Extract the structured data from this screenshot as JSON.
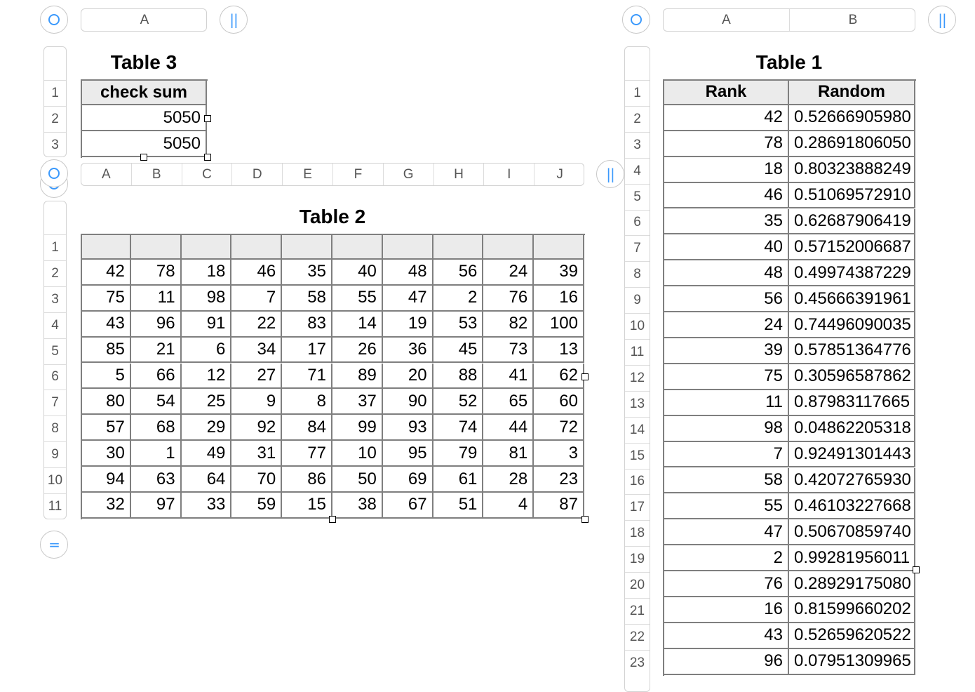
{
  "accent_color": "#3b99fc",
  "table3": {
    "title": "Table 3",
    "columns": [
      "A"
    ],
    "row_numbers": [
      "1",
      "2",
      "3"
    ],
    "header": [
      "check sum"
    ],
    "rows": [
      [
        "5050"
      ],
      [
        "5050"
      ]
    ]
  },
  "table2": {
    "title": "Table 2",
    "columns": [
      "A",
      "B",
      "C",
      "D",
      "E",
      "F",
      "G",
      "H",
      "I",
      "J"
    ],
    "row_numbers": [
      "1",
      "2",
      "3",
      "4",
      "5",
      "6",
      "7",
      "8",
      "9",
      "10",
      "11"
    ],
    "header": [
      "",
      "",
      "",
      "",
      "",
      "",
      "",
      "",
      "",
      ""
    ],
    "rows": [
      [
        "42",
        "78",
        "18",
        "46",
        "35",
        "40",
        "48",
        "56",
        "24",
        "39"
      ],
      [
        "75",
        "11",
        "98",
        "7",
        "58",
        "55",
        "47",
        "2",
        "76",
        "16"
      ],
      [
        "43",
        "96",
        "91",
        "22",
        "83",
        "14",
        "19",
        "53",
        "82",
        "100"
      ],
      [
        "85",
        "21",
        "6",
        "34",
        "17",
        "26",
        "36",
        "45",
        "73",
        "13"
      ],
      [
        "5",
        "66",
        "12",
        "27",
        "71",
        "89",
        "20",
        "88",
        "41",
        "62"
      ],
      [
        "80",
        "54",
        "25",
        "9",
        "8",
        "37",
        "90",
        "52",
        "65",
        "60"
      ],
      [
        "57",
        "68",
        "29",
        "92",
        "84",
        "99",
        "93",
        "74",
        "44",
        "72"
      ],
      [
        "30",
        "1",
        "49",
        "31",
        "77",
        "10",
        "95",
        "79",
        "81",
        "3"
      ],
      [
        "94",
        "63",
        "64",
        "70",
        "86",
        "50",
        "69",
        "61",
        "28",
        "23"
      ],
      [
        "32",
        "97",
        "33",
        "59",
        "15",
        "38",
        "67",
        "51",
        "4",
        "87"
      ]
    ]
  },
  "table1": {
    "title": "Table 1",
    "columns": [
      "A",
      "B"
    ],
    "row_numbers": [
      "1",
      "2",
      "3",
      "4",
      "5",
      "6",
      "7",
      "8",
      "9",
      "10",
      "11",
      "12",
      "13",
      "14",
      "15",
      "16",
      "17",
      "18",
      "19",
      "20",
      "21",
      "22",
      "23"
    ],
    "header": [
      "Rank",
      "Random"
    ],
    "rows": [
      [
        "42",
        "0.52666905980"
      ],
      [
        "78",
        "0.28691806050"
      ],
      [
        "18",
        "0.80323888249"
      ],
      [
        "46",
        "0.51069572910"
      ],
      [
        "35",
        "0.62687906419"
      ],
      [
        "40",
        "0.57152006687"
      ],
      [
        "48",
        "0.49974387229"
      ],
      [
        "56",
        "0.45666391961"
      ],
      [
        "24",
        "0.74496090035"
      ],
      [
        "39",
        "0.57851364776"
      ],
      [
        "75",
        "0.30596587862"
      ],
      [
        "11",
        "0.87983117665"
      ],
      [
        "98",
        "0.04862205318"
      ],
      [
        "7",
        "0.92491301443"
      ],
      [
        "58",
        "0.42072765930"
      ],
      [
        "55",
        "0.46103227668"
      ],
      [
        "47",
        "0.50670859740"
      ],
      [
        "2",
        "0.99281956011"
      ],
      [
        "76",
        "0.28929175080"
      ],
      [
        "16",
        "0.81599660202"
      ],
      [
        "43",
        "0.52659620522"
      ],
      [
        "96",
        "0.07951309965"
      ]
    ]
  },
  "icons": {
    "select_table": "circle-select-icon",
    "add_column": "pause-bars-icon",
    "add_row": "equals-icon"
  }
}
